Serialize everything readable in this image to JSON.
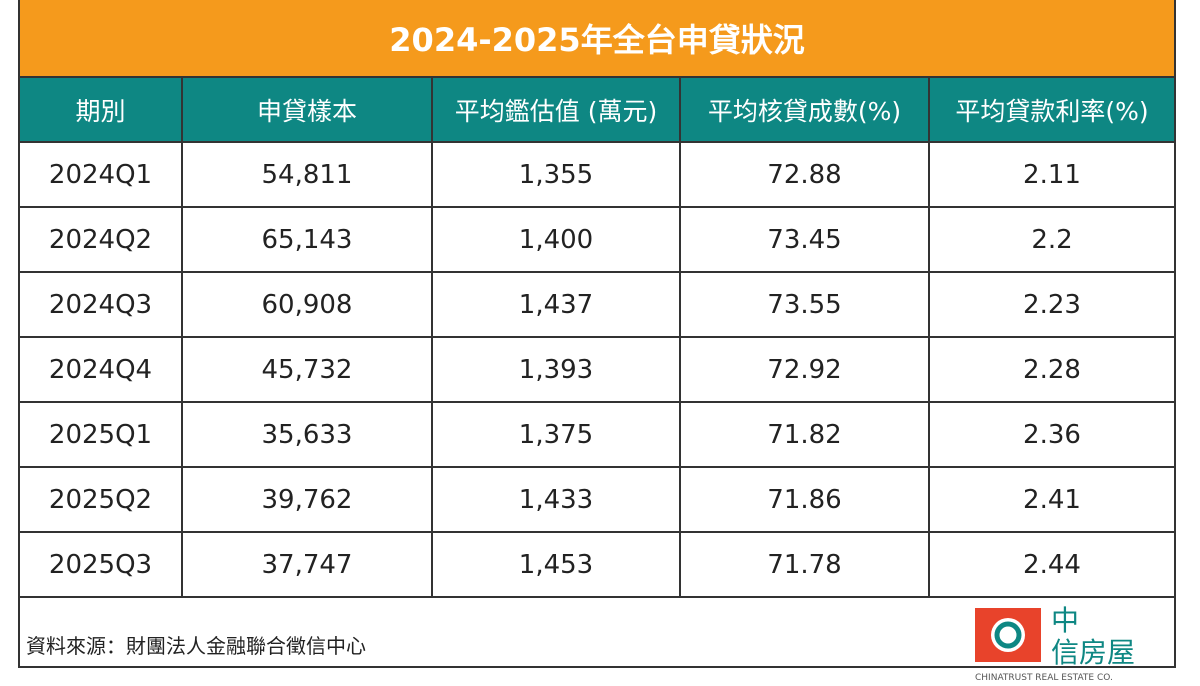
{
  "header": {
    "title": "2024-2025年全台申貸狀況"
  },
  "table": {
    "columns": [
      "期別",
      "申貸樣本",
      "平均鑑估值 (萬元)",
      "平均核貸成數(%)",
      "平均貸款利率(%)"
    ],
    "rows": [
      [
        "2024Q1",
        "54,811",
        "1,355",
        "72.88",
        "2.11"
      ],
      [
        "2024Q2",
        "65,143",
        "1,400",
        "73.45",
        "2.2"
      ],
      [
        "2024Q3",
        "60,908",
        "1,437",
        "73.55",
        "2.23"
      ],
      [
        "2024Q4",
        "45,732",
        "1,393",
        "72.92",
        "2.28"
      ],
      [
        "2025Q1",
        "35,633",
        "1,375",
        "71.82",
        "2.36"
      ],
      [
        "2025Q2",
        "39,762",
        "1,433",
        "71.86",
        "2.41"
      ],
      [
        "2025Q3",
        "37,747",
        "1,453",
        "71.78",
        "2.44"
      ]
    ]
  },
  "footer": {
    "source": "資料來源：財團法人金融聯合徵信中心",
    "logo": {
      "name": [
        "中",
        "信房屋"
      ],
      "subtitle": "CHINATRUST REAL ESTATE CO."
    }
  }
}
